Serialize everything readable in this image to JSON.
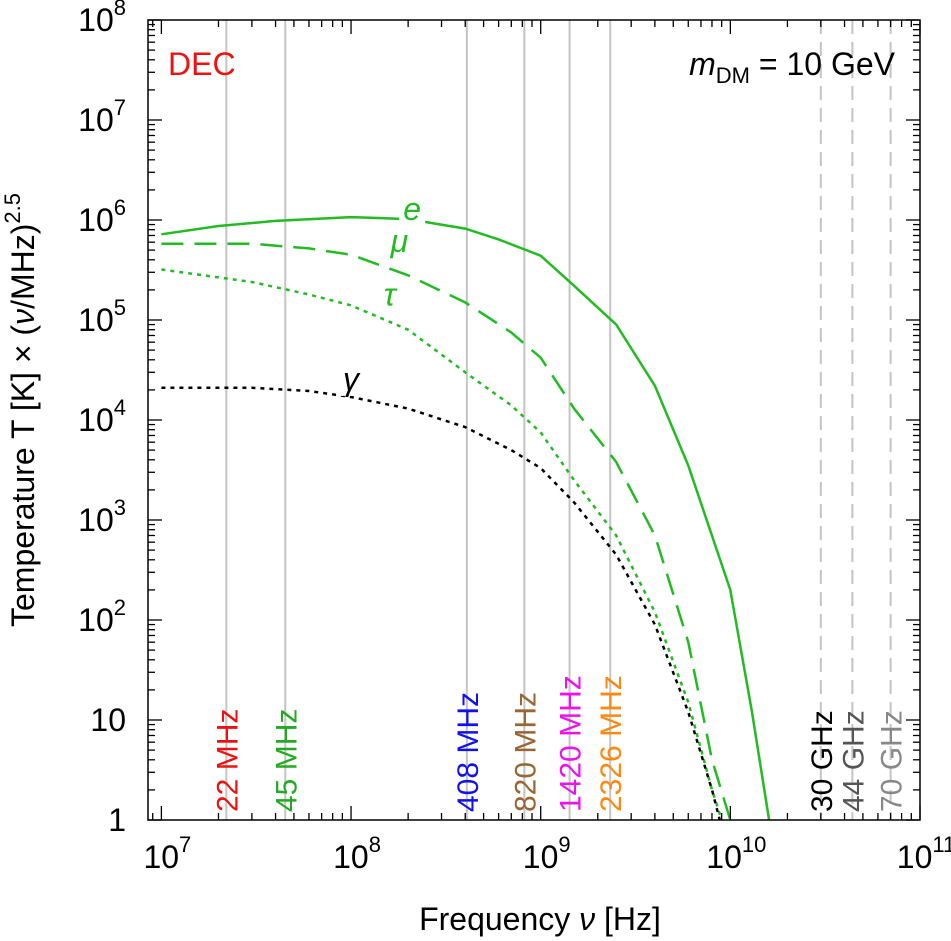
{
  "chart_data": {
    "type": "line",
    "xlabel_main": "Frequency ",
    "xlabel_var": "ν",
    "xlabel_unit": " [Hz]",
    "ylabel_main": "Temperature T [K] × (",
    "ylabel_var": "ν",
    "ylabel_unit": "/MHz)",
    "ylabel_exp": "2.5",
    "x_scale": "log",
    "y_scale": "log",
    "xlim": [
      8500000,
      100000000000
    ],
    "ylim": [
      1,
      100000000
    ],
    "x_ticks": [
      {
        "value": 10000000,
        "base": "10",
        "exp": "7"
      },
      {
        "value": 100000000,
        "base": "10",
        "exp": "8"
      },
      {
        "value": 1000000000,
        "base": "10",
        "exp": "9"
      },
      {
        "value": 10000000000,
        "base": "10",
        "exp": "10"
      },
      {
        "value": 100000000000,
        "base": "10",
        "exp": "11"
      }
    ],
    "y_ticks": [
      {
        "value": 1,
        "base": "1",
        "exp": ""
      },
      {
        "value": 10,
        "base": "10",
        "exp": ""
      },
      {
        "value": 100,
        "base": "10",
        "exp": "2"
      },
      {
        "value": 1000,
        "base": "10",
        "exp": "3"
      },
      {
        "value": 10000,
        "base": "10",
        "exp": "4"
      },
      {
        "value": 100000,
        "base": "10",
        "exp": "5"
      },
      {
        "value": 1000000,
        "base": "10",
        "exp": "6"
      },
      {
        "value": 10000000,
        "base": "10",
        "exp": "7"
      },
      {
        "value": 100000000,
        "base": "10",
        "exp": "8"
      }
    ],
    "corner_label": "DEC",
    "mass_label": {
      "m": "m",
      "sub": "DM",
      "rest": " = 10 GeV"
    },
    "series": [
      {
        "name": "e",
        "color": "#22bb22",
        "dash": "solid",
        "label_at": [
          210000000,
          1000000
        ],
        "points": [
          [
            10000000,
            720000
          ],
          [
            20000000,
            870000
          ],
          [
            40000000,
            980000
          ],
          [
            100000000,
            1070000
          ],
          [
            200000000,
            1020000
          ],
          [
            400000000,
            820000
          ],
          [
            600000000,
            640000
          ],
          [
            1000000000,
            440000
          ],
          [
            1500000000,
            220000
          ],
          [
            2500000000,
            90000
          ],
          [
            4000000000,
            22000
          ],
          [
            6000000000,
            3500
          ],
          [
            10000000000,
            200
          ],
          [
            13000000000,
            12
          ],
          [
            16000000000,
            1
          ]
        ]
      },
      {
        "name": "μ",
        "color": "#22bb22",
        "dash": "long",
        "label_at": [
          180000000,
          480000
        ],
        "points": [
          [
            10000000,
            580000
          ],
          [
            30000000,
            580000
          ],
          [
            60000000,
            520000
          ],
          [
            100000000,
            450000
          ],
          [
            200000000,
            280000
          ],
          [
            400000000,
            150000
          ],
          [
            700000000,
            75000
          ],
          [
            1000000000,
            42000
          ],
          [
            1500000000,
            13000
          ],
          [
            2500000000,
            3800
          ],
          [
            4000000000,
            700
          ],
          [
            6000000000,
            60
          ],
          [
            8000000000,
            4
          ],
          [
            10000000000,
            1
          ]
        ]
      },
      {
        "name": "τ",
        "color": "#22bb22",
        "dash": "dotted",
        "label_at": [
          160000000,
          140000
        ],
        "points": [
          [
            10000000,
            320000
          ],
          [
            30000000,
            240000
          ],
          [
            60000000,
            180000
          ],
          [
            100000000,
            140000
          ],
          [
            200000000,
            80000
          ],
          [
            400000000,
            30000
          ],
          [
            700000000,
            14000
          ],
          [
            1000000000,
            7500
          ],
          [
            1500000000,
            2500
          ],
          [
            2500000000,
            700
          ],
          [
            4000000000,
            120
          ],
          [
            6000000000,
            15
          ],
          [
            8000000000,
            2
          ],
          [
            9000000000,
            1
          ]
        ]
      },
      {
        "name": "γ",
        "color": "#000000",
        "dash": "dotted",
        "label_at": [
          100000000,
          20000
        ],
        "points": [
          [
            10000000,
            21000
          ],
          [
            30000000,
            21000
          ],
          [
            60000000,
            19500
          ],
          [
            100000000,
            17000
          ],
          [
            200000000,
            13000
          ],
          [
            400000000,
            8500
          ],
          [
            700000000,
            5000
          ],
          [
            1000000000,
            3300
          ],
          [
            1500000000,
            1500
          ],
          [
            2500000000,
            450
          ],
          [
            4000000000,
            90
          ],
          [
            6000000000,
            12
          ],
          [
            8000000000,
            2
          ],
          [
            8800000000,
            1
          ]
        ]
      }
    ],
    "frequency_markers": [
      {
        "label": "22 MHz",
        "freq": 22000000,
        "color": "#ee1111",
        "line": "solid"
      },
      {
        "label": "45 MHz",
        "freq": 45000000,
        "color": "#22aa22",
        "line": "solid"
      },
      {
        "label": "408 MHz",
        "freq": 408000000,
        "color": "#1111ee",
        "line": "solid"
      },
      {
        "label": "820 MHz",
        "freq": 820000000,
        "color": "#996633",
        "line": "solid"
      },
      {
        "label": "1420 MHz",
        "freq": 1420000000,
        "color": "#ee11ee",
        "line": "solid"
      },
      {
        "label": "2326 MHz",
        "freq": 2326000000,
        "color": "#ff8811",
        "line": "solid"
      },
      {
        "label": "30 GHz",
        "freq": 30000000000,
        "color": "#000000",
        "line": "dashed"
      },
      {
        "label": "44 GHz",
        "freq": 44000000000,
        "color": "#555555",
        "line": "dashed"
      },
      {
        "label": "70 GHz",
        "freq": 70000000000,
        "color": "#888888",
        "line": "dashed"
      }
    ]
  }
}
